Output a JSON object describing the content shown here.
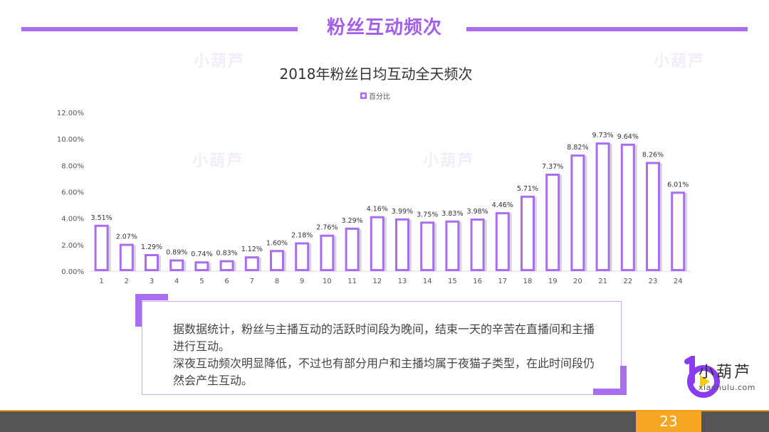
{
  "slide": {
    "title": "粉丝互动频次",
    "page_number": "23"
  },
  "watermark": {
    "text": "小葫芦"
  },
  "chart_data": {
    "type": "bar",
    "title": "2018年粉丝日均互动全天频次",
    "legend": {
      "label": "百分比",
      "placement": "top-center"
    },
    "categories": [
      "1",
      "2",
      "3",
      "4",
      "5",
      "6",
      "7",
      "8",
      "9",
      "10",
      "11",
      "12",
      "13",
      "14",
      "15",
      "16",
      "17",
      "18",
      "19",
      "20",
      "21",
      "22",
      "23",
      "24"
    ],
    "series": [
      {
        "name": "百分比",
        "values": [
          3.51,
          2.07,
          1.29,
          0.89,
          0.74,
          0.83,
          1.12,
          1.6,
          2.18,
          2.76,
          3.29,
          4.16,
          3.99,
          3.75,
          3.83,
          3.98,
          4.46,
          5.71,
          7.37,
          8.82,
          9.73,
          9.64,
          8.26,
          6.01
        ],
        "labels": [
          "3.51%",
          "2.07%",
          "1.29%",
          "0.89%",
          "0.74%",
          "0.83%",
          "1.12%",
          "1.60%",
          "2.18%",
          "2.76%",
          "3.29%",
          "4.16%",
          "3.99%",
          "3.75%",
          "3.83%",
          "3.98%",
          "4.46%",
          "5.71%",
          "7.37%",
          "8.82%",
          "9.73%",
          "9.64%",
          "8.26%",
          "6.01%"
        ]
      }
    ],
    "ylim": [
      0,
      12
    ],
    "yticks": [
      0,
      2,
      4,
      6,
      8,
      10,
      12
    ],
    "ytick_labels": [
      "0.00%",
      "2.00%",
      "4.00%",
      "6.00%",
      "8.00%",
      "10.00%",
      "12.00%"
    ],
    "xlabel": "",
    "ylabel": "",
    "grid": false,
    "colors": {
      "bar_border": "#a96ef0",
      "bar_fill": "#ffffff",
      "shadow": "#bdbdbd"
    }
  },
  "note": {
    "lines": [
      "据数据统计，粉丝与主播互动的活跃时间段为晚间，结束一天的辛苦在直播间和主播进行互动。",
      "深夜互动频次明显降低，不过也有部分用户和主播均属于夜猫子类型，在此时间段仍然会产生互动。"
    ]
  },
  "brand": {
    "name": "小葫芦",
    "url": "xiaohulu.com",
    "colors": {
      "purple": "#8a3df0",
      "yellow": "#ffcc00"
    }
  }
}
